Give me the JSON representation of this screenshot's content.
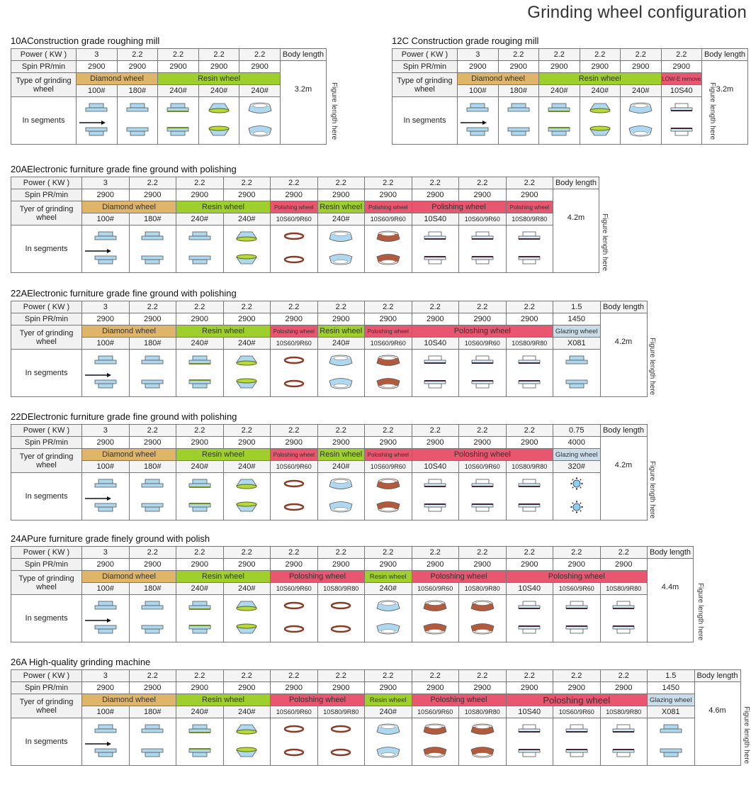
{
  "title": "Grinding wheel configuration",
  "colors": {
    "diamond": "#dfb669",
    "resin": "#9fcf2c",
    "polishing": "#e8566f",
    "glazing": "#c9dce8",
    "low_e": "#e8566f"
  },
  "labels": {
    "segments": "In segments",
    "body_length": "Body length",
    "figure_length": "Figure length here"
  },
  "sections": [
    {
      "title": "10AConstruction grade roughing mill",
      "power_label": "Power  ( KW )",
      "spin_label": "Spin PR/min",
      "type_label": "Type of grinding wheel",
      "power": [
        "3",
        "2.2",
        "2.2",
        "2.2",
        "2.2"
      ],
      "spin": [
        "2900",
        "2900",
        "2900",
        "2900",
        "2900"
      ],
      "groups": [
        {
          "label": "Diamond wheel",
          "span": 2,
          "kind": "diamond"
        },
        {
          "label": "Resin wheel",
          "span": 3,
          "kind": "resin"
        }
      ],
      "grit": [
        "100#",
        "180#",
        "240#",
        "240#",
        "240#"
      ],
      "icons": [
        "flat-wheel",
        "flat-wheel",
        "flat-wheel-green",
        "cone-wheel",
        "cup-wheel"
      ],
      "body_length": "3.2m"
    },
    {
      "title": "12C Construction grade rouging mill",
      "power_label": "Power ( KW )",
      "spin_label": "Spin PR/min",
      "type_label": "Type of grinding wheel",
      "power": [
        "3",
        "2.2",
        "2.2",
        "2.2",
        "2.2",
        "2.2"
      ],
      "spin": [
        "2900",
        "2900",
        "2900",
        "2900",
        "2900",
        "2900"
      ],
      "groups": [
        {
          "label": "Diamond wheel",
          "span": 2,
          "kind": "diamond"
        },
        {
          "label": "Resin wheel",
          "span": 3,
          "kind": "resin"
        },
        {
          "label": "LOW-E remove",
          "span": 1,
          "kind": "low_e",
          "small": true
        }
      ],
      "grit": [
        "100#",
        "180#",
        "240#",
        "240#",
        "240#",
        "10S40"
      ],
      "icons": [
        "flat-wheel",
        "flat-wheel",
        "flat-wheel-green",
        "cone-wheel",
        "cup-wheel",
        "polish-flat-wheel"
      ],
      "body_length": "3.2m"
    },
    {
      "title": "20AElectronic furniture grade fine ground with polishing",
      "power_label": "Power  ( KW )",
      "spin_label": "Spin PR/min",
      "type_label": "Tyer of grinding wheel",
      "power": [
        "3",
        "2.2",
        "2.2",
        "2.2",
        "2.2",
        "2.2",
        "2.2",
        "2.2",
        "2.2",
        "2.2"
      ],
      "spin": [
        "2900",
        "2900",
        "2900",
        "2900",
        "2900",
        "2900",
        "2900",
        "2900",
        "2900",
        "2900"
      ],
      "groups": [
        {
          "label": "Diamond wheel",
          "span": 2,
          "kind": "diamond"
        },
        {
          "label": "Resin wheel",
          "span": 2,
          "kind": "resin"
        },
        {
          "label": "Polishing wheel",
          "span": 1,
          "kind": "polishing",
          "small": true
        },
        {
          "label": "Resin wheel",
          "span": 1,
          "kind": "resin"
        },
        {
          "label": "Polishing wheel",
          "span": 1,
          "kind": "polishing",
          "small": true
        },
        {
          "label": "Polishing wheel",
          "span": 2,
          "kind": "polishing"
        },
        {
          "label": "Polishing wheel",
          "span": 1,
          "kind": "polishing",
          "small": true
        }
      ],
      "grit": [
        "100#",
        "180#",
        "240#",
        "240#",
        "10S60/9R60",
        "240#",
        "10S60/9R60",
        "10S40",
        "10S60/9R60",
        "10S80/9R80"
      ],
      "icons": [
        "flat-wheel",
        "flat-wheel",
        "flat-wheel",
        "cone-wheel",
        "brown-ring-wheel",
        "cup-wheel",
        "brown-cup-wheel",
        "polish-flat-wheel",
        "polish-flat-wheel",
        "polish-flat-wheel"
      ],
      "body_length": "4.2m"
    },
    {
      "title": "22AElectronic furniture grade fine ground with polishing",
      "power_label": "Power  ( KW )",
      "spin_label": "Spin  PR/min",
      "type_label": "Tyer of grinding wheel",
      "power": [
        "3",
        "2.2",
        "2.2",
        "2.2",
        "2.2",
        "2.2",
        "2.2",
        "2.2",
        "2.2",
        "2.2",
        "1.5"
      ],
      "spin": [
        "2900",
        "2900",
        "2900",
        "2900",
        "2900",
        "2900",
        "2900",
        "2900",
        "2900",
        "2900",
        "1450"
      ],
      "groups": [
        {
          "label": "Diamond wheel",
          "span": 2,
          "kind": "diamond"
        },
        {
          "label": "Resin wheel",
          "span": 2,
          "kind": "resin"
        },
        {
          "label": "Poloshing wheel",
          "span": 1,
          "kind": "polishing",
          "small": true
        },
        {
          "label": "Resin wheel",
          "span": 1,
          "kind": "resin"
        },
        {
          "label": "Poloshing wheel",
          "span": 1,
          "kind": "polishing",
          "small": true
        },
        {
          "label": "Poloshing wheel",
          "span": 3,
          "kind": "polishing"
        },
        {
          "label": "Glazing wheel",
          "span": 1,
          "kind": "glazing",
          "small2": true
        }
      ],
      "grit": [
        "100#",
        "180#",
        "240#",
        "240#",
        "10S60/9R60",
        "240#",
        "10S60/9R60",
        "10S40",
        "10S60/9R60",
        "10S80/9R80",
        "X081"
      ],
      "icons": [
        "flat-wheel",
        "flat-wheel",
        "flat-wheel-green",
        "cone-wheel",
        "brown-ring-wheel",
        "cup-wheel",
        "brown-cup-wheel",
        "polish-flat-wheel",
        "polish-flat-wheel",
        "polish-flat-wheel",
        "flat-wheel"
      ],
      "body_length": "4.2m"
    },
    {
      "title": "22DElectronic furniture grade fine ground with polishing",
      "power_label": "Power  ( KW )",
      "spin_label": "Spin  PR/min",
      "type_label": "Tyer of grinding wheel",
      "power": [
        "3",
        "2.2",
        "2.2",
        "2.2",
        "2.2",
        "2.2",
        "2.2",
        "2.2",
        "2.2",
        "2.2",
        "0.75"
      ],
      "spin": [
        "2900",
        "2900",
        "2900",
        "2900",
        "2900",
        "2900",
        "2900",
        "2900",
        "2900",
        "2900",
        "4000"
      ],
      "groups": [
        {
          "label": "Diamond wheel",
          "span": 2,
          "kind": "diamond"
        },
        {
          "label": "Resin wheel",
          "span": 2,
          "kind": "resin"
        },
        {
          "label": "Poloshing wheel",
          "span": 1,
          "kind": "polishing",
          "small": true
        },
        {
          "label": "Resin wheel",
          "span": 1,
          "kind": "resin"
        },
        {
          "label": "Poloshing wheel",
          "span": 1,
          "kind": "polishing",
          "small": true
        },
        {
          "label": "Poloshing wheel",
          "span": 3,
          "kind": "polishing"
        },
        {
          "label": "Glazing wheel",
          "span": 1,
          "kind": "glazing",
          "small2": true
        }
      ],
      "grit": [
        "100#",
        "180#",
        "240#",
        "240#",
        "10S60/9R60",
        "240#",
        "10S60/9R60",
        "10S40",
        "10S60/9R60",
        "10S80/9R80",
        "320#"
      ],
      "icons": [
        "flat-wheel",
        "flat-wheel",
        "flat-wheel-green",
        "cone-wheel",
        "brown-ring-wheel",
        "cup-wheel",
        "brown-cup-wheel",
        "polish-flat-wheel",
        "polish-flat-wheel",
        "polish-flat-wheel",
        "glazing-dot-wheel"
      ],
      "body_length": "4.2m"
    },
    {
      "title": "24APure furniture grade finely ground with polish",
      "power_label": "Power  ( KW )",
      "spin_label": "Spin  PR/min",
      "type_label": "Type of grinding wheel",
      "power": [
        "3",
        "2.2",
        "2.2",
        "2.2",
        "2.2",
        "2.2",
        "2.2",
        "2.2",
        "2.2",
        "2.2",
        "2.2",
        "2.2"
      ],
      "spin": [
        "2900",
        "2900",
        "2900",
        "2900",
        "2900",
        "2900",
        "2900",
        "2900",
        "2900",
        "2900",
        "2900",
        "2900"
      ],
      "groups": [
        {
          "label": "Diamond wheel",
          "span": 2,
          "kind": "diamond"
        },
        {
          "label": "Resin wheel",
          "span": 2,
          "kind": "resin"
        },
        {
          "label": "Poloshing wheel",
          "span": 2,
          "kind": "polishing"
        },
        {
          "label": "Resin wheel",
          "span": 1,
          "kind": "resin",
          "small2": true
        },
        {
          "label": "Poloshing wheel",
          "span": 2,
          "kind": "polishing"
        },
        {
          "label": "Poloshing wheel",
          "span": 3,
          "kind": "polishing"
        }
      ],
      "grit": [
        "100#",
        "180#",
        "240#",
        "240#",
        "10S60/9R60",
        "10S80/9R80",
        "240#",
        "10S60/9R60",
        "10S80/9R80",
        "10S40",
        "10S60/9R60",
        "10S80/9R80"
      ],
      "icons": [
        "flat-wheel",
        "flat-wheel",
        "flat-wheel-green",
        "cone-wheel",
        "brown-ring-wheel",
        "brown-ring-wheel",
        "cup-wheel",
        "brown-cup-wheel",
        "brown-cup-wheel",
        "polish-flat-wheel",
        "polish-flat-wheel",
        "polish-flat-wheel"
      ],
      "body_length": "4.4m"
    },
    {
      "title": "26A High-quality grinding machine",
      "power_label": "Power  ( KW )",
      "spin_label": "Spin  PR/min",
      "type_label": "Tyer of grinding wheel",
      "power": [
        "3",
        "2.2",
        "2.2",
        "2.2",
        "2.2",
        "2.2",
        "2.2",
        "2.2",
        "2.2",
        "2.2",
        "2.2",
        "2.2",
        "1.5"
      ],
      "spin": [
        "2900",
        "2900",
        "2900",
        "2900",
        "2900",
        "2900",
        "2900",
        "2900",
        "2900",
        "2900",
        "2900",
        "2900",
        "1450"
      ],
      "groups": [
        {
          "label": "Diamond wheel",
          "span": 2,
          "kind": "diamond"
        },
        {
          "label": "Resin wheel",
          "span": 2,
          "kind": "resin"
        },
        {
          "label": "Poloshing wheel",
          "span": 2,
          "kind": "polishing"
        },
        {
          "label": "Resin wheel",
          "span": 1,
          "kind": "resin",
          "small2": true
        },
        {
          "label": "Poloshing wheel",
          "span": 2,
          "kind": "polishing"
        },
        {
          "label": "Poloshing wheel",
          "span": 3,
          "kind": "polishing",
          "big": true
        },
        {
          "label": "Glazing wheel",
          "span": 1,
          "kind": "glazing",
          "small2": true
        }
      ],
      "grit": [
        "100#",
        "180#",
        "240#",
        "240#",
        "10S60/9R60",
        "10S80/9R80",
        "240#",
        "10S60/9R60",
        "10S80/9R80",
        "10S40",
        "10S60/9R60",
        "10S80/9R80",
        "X081"
      ],
      "icons": [
        "flat-wheel",
        "flat-wheel",
        "flat-wheel-green",
        "cone-wheel",
        "brown-ring-wheel",
        "brown-ring-wheel",
        "cup-wheel",
        "brown-cup-wheel",
        "brown-cup-wheel",
        "polish-flat-wheel",
        "polish-flat-wheel",
        "polish-flat-wheel",
        "flat-wheel"
      ],
      "body_length": "4.6m"
    }
  ]
}
